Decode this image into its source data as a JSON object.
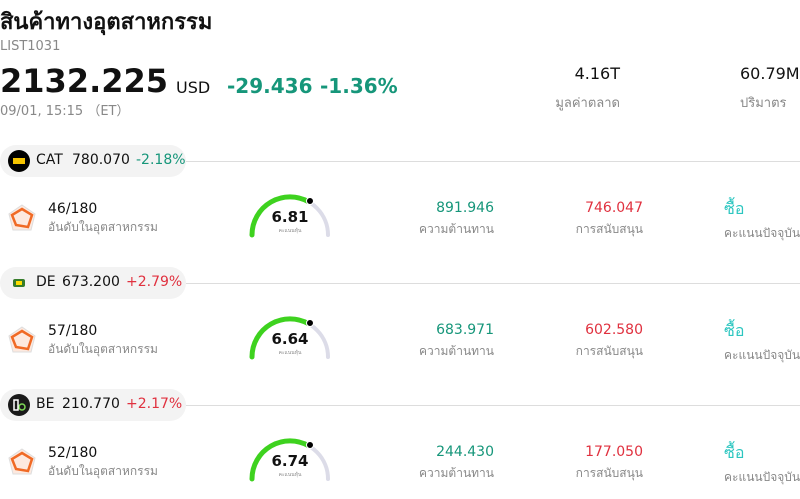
{
  "header": {
    "title": "สินค้าทางอุตสาหกรรม",
    "code": "LIST1031",
    "price": "2132.225",
    "currency": "USD",
    "change": "-29.436",
    "change_pct": "-1.36%",
    "time": "09/01, 15:15 （ET）"
  },
  "stats": [
    {
      "value": "4.16T",
      "label": "มูลค่าตลาด"
    },
    {
      "value": "60.79M",
      "label": "ปริมาตร"
    }
  ],
  "stocks": [
    {
      "ticker": "CAT",
      "price": "780.070",
      "change": "-2.18%",
      "rank": "46/180",
      "rank_label": "อันดับในอุตสาหกรรม",
      "score": "6.81",
      "score_label": "คะแนนหุ้น",
      "resistance": "891.946",
      "resistance_label": "ความต้านทาน",
      "support": "746.047",
      "support_label": "การสนับสนุน",
      "action": "ซื้อ",
      "action_label": "คะแนนปัจจุบัน"
    },
    {
      "ticker": "DE",
      "price": "673.200",
      "change": "+2.79%",
      "rank": "57/180",
      "rank_label": "อันดับในอุตสาหกรรม",
      "score": "6.64",
      "score_label": "คะแนนหุ้น",
      "resistance": "683.971",
      "resistance_label": "ความต้านทาน",
      "support": "602.580",
      "support_label": "การสนับสนุน",
      "action": "ซื้อ",
      "action_label": "คะแนนปัจจุบัน"
    },
    {
      "ticker": "BE",
      "price": "210.770",
      "change": "+2.17%",
      "rank": "52/180",
      "rank_label": "อันดับในอุตสาหกรรม",
      "score": "6.74",
      "score_label": "คะแนนหุ้น",
      "resistance": "244.430",
      "resistance_label": "ความต้านทาน",
      "support": "177.050",
      "support_label": "การสนับสนุน",
      "action": "ซื้อ",
      "action_label": "คะแนนปัจจุบัน"
    }
  ]
}
